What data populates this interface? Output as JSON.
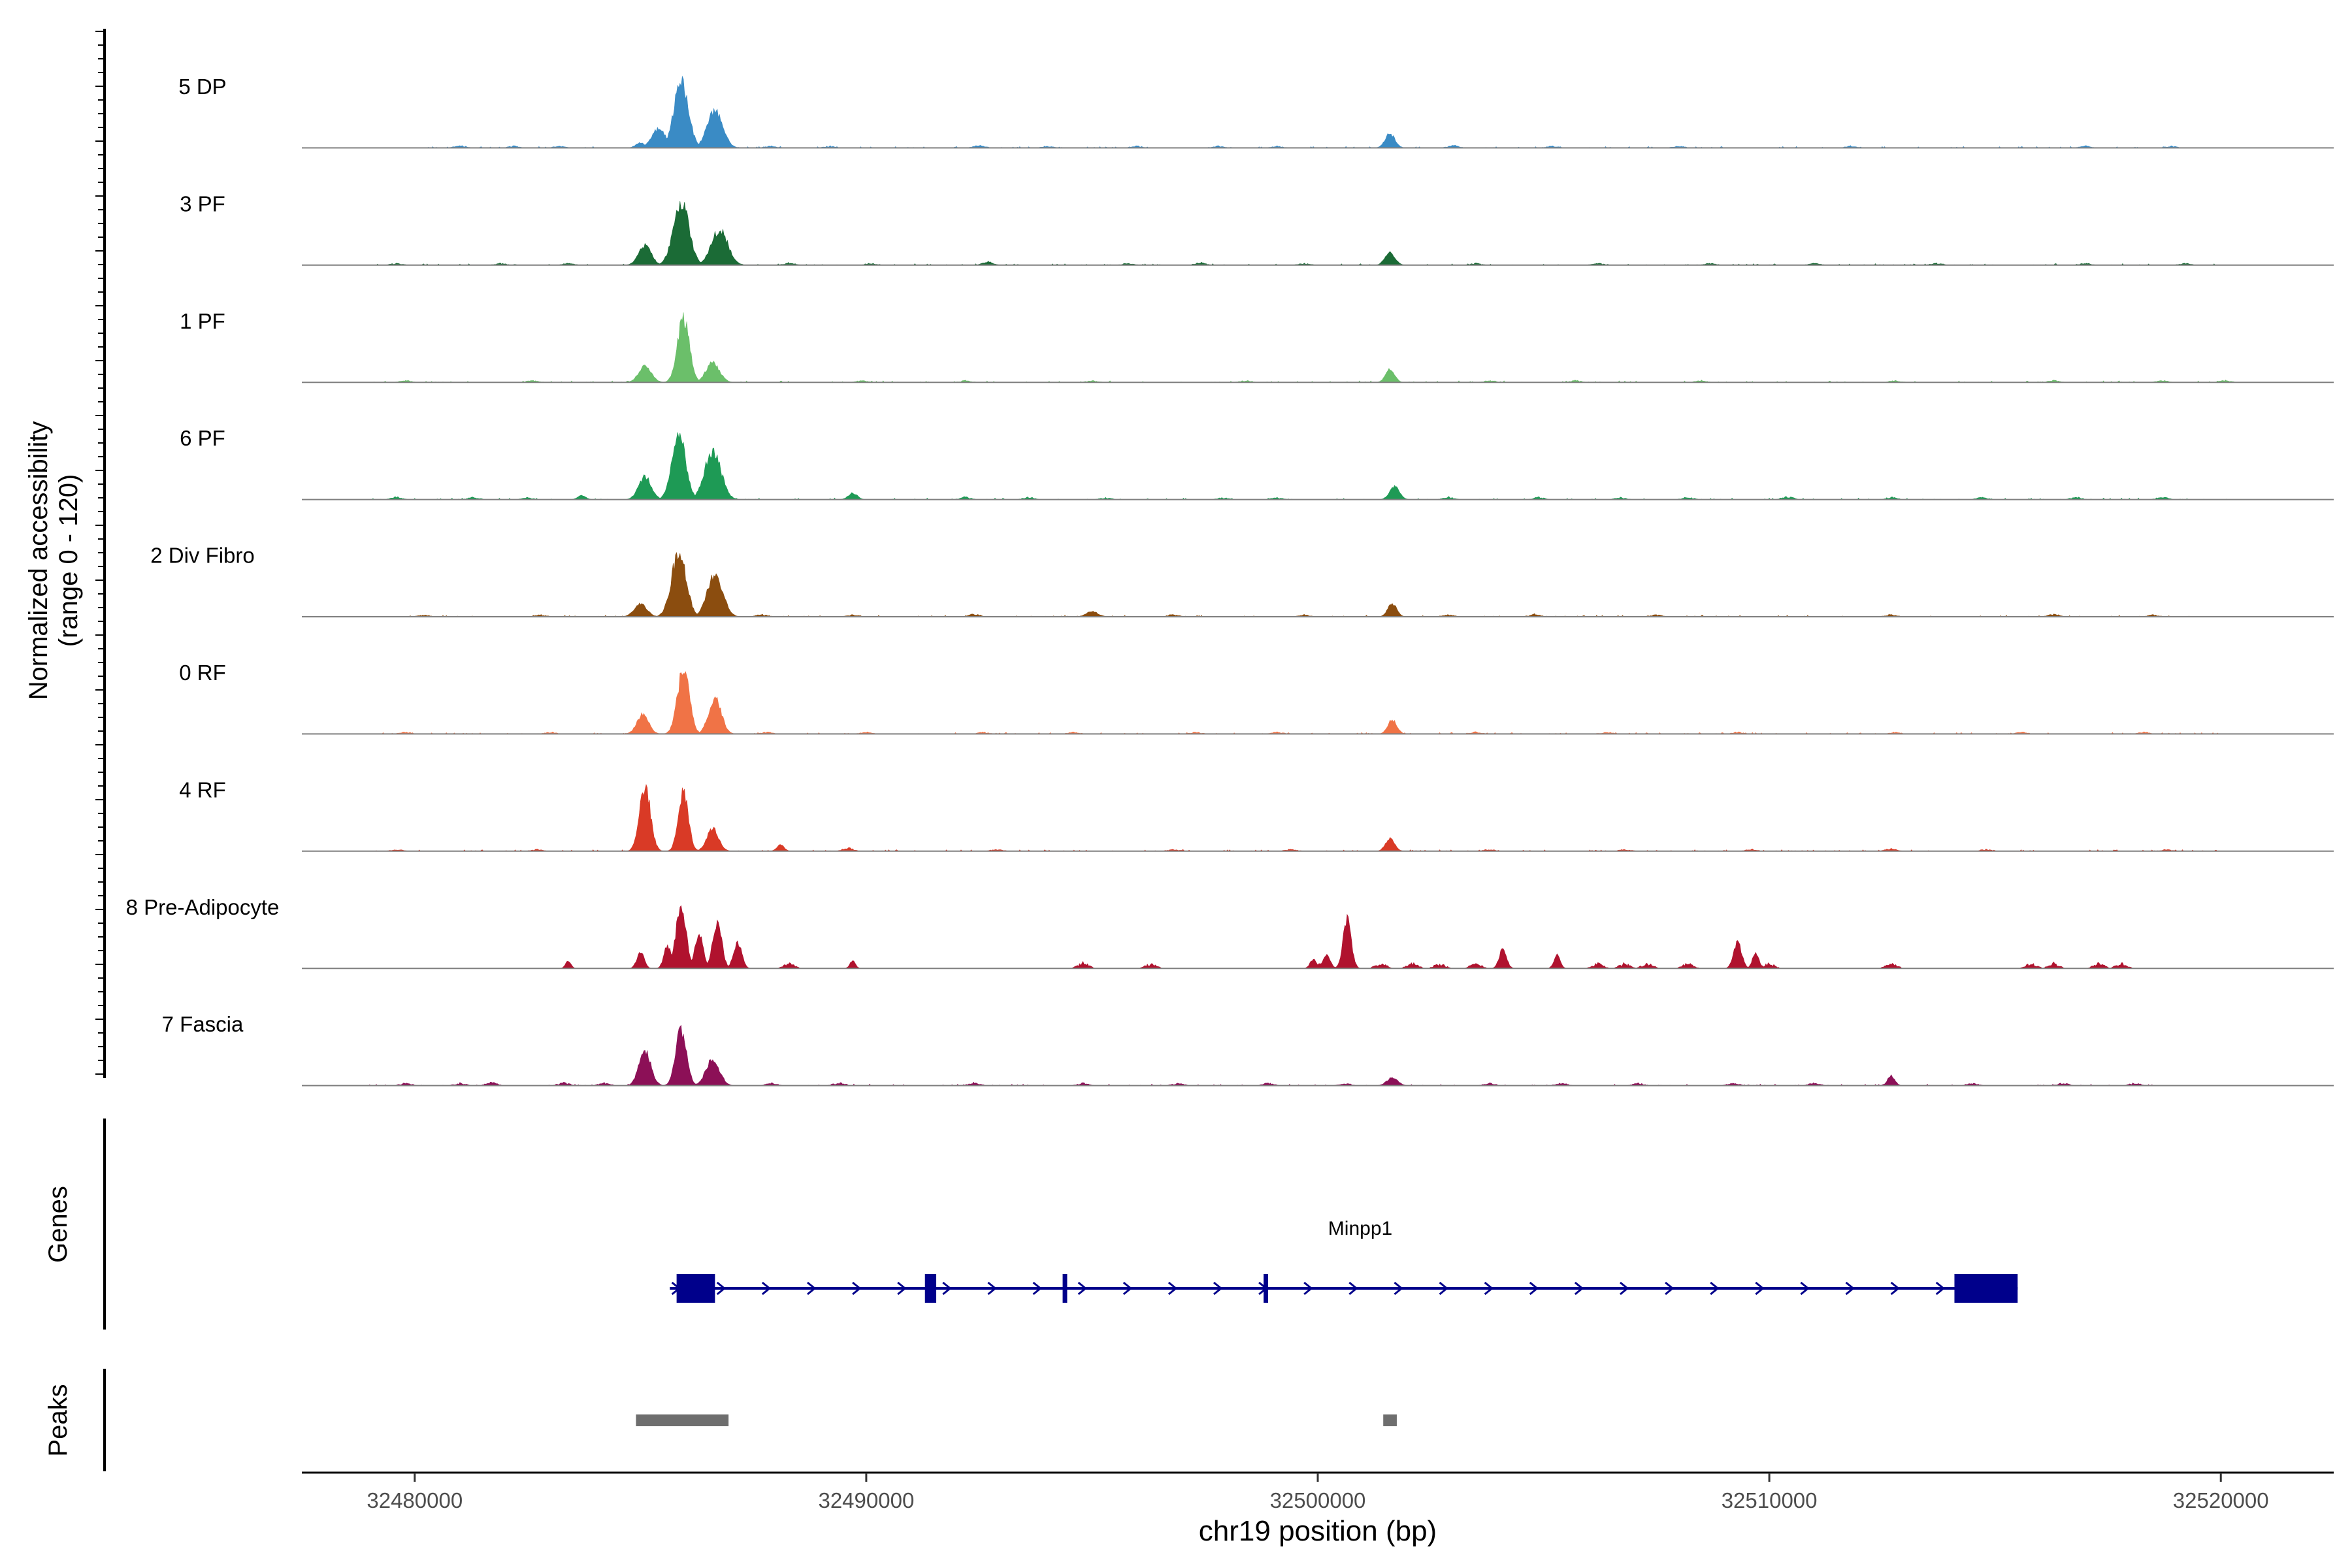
{
  "chart_data": {
    "type": "area",
    "title": "",
    "y_axis_label_line1": "Normalized accessibility",
    "y_axis_label_line2": "(range 0 - 120)",
    "y_range": [
      0,
      120
    ],
    "x_axis_label": "chr19 position (bp)",
    "x_range": [
      32477500,
      32522500
    ],
    "x_ticks": [
      32480000,
      32490000,
      32500000,
      32510000,
      32520000
    ],
    "x_tick_labels": [
      "32480000",
      "32490000",
      "32500000",
      "32510000",
      "32520000"
    ],
    "tracks": [
      {
        "name": "5 DP",
        "color": "#3A8BC5",
        "peaks": [
          [
            32485000,
            8,
            100
          ],
          [
            32485400,
            30,
            150
          ],
          [
            32485900,
            100,
            160
          ],
          [
            32486650,
            58,
            170
          ],
          [
            32501600,
            22,
            110
          ]
        ],
        "noise": [
          [
            32481000,
            4
          ],
          [
            32482200,
            3
          ],
          [
            32483200,
            3
          ],
          [
            32487900,
            3
          ],
          [
            32489200,
            3
          ],
          [
            32492500,
            4
          ],
          [
            32494000,
            3
          ],
          [
            32496000,
            3
          ],
          [
            32497800,
            3
          ],
          [
            32499100,
            3
          ],
          [
            32503000,
            4
          ],
          [
            32505200,
            3
          ],
          [
            32508000,
            3
          ],
          [
            32511800,
            3
          ],
          [
            32517000,
            3
          ],
          [
            32518900,
            3
          ]
        ],
        "noise_range": [
          32480000,
          32519500
        ]
      },
      {
        "name": "3 PF",
        "color": "#1B6B36",
        "peaks": [
          [
            32485100,
            30,
            140
          ],
          [
            32485900,
            100,
            170
          ],
          [
            32486750,
            55,
            180
          ],
          [
            32501600,
            20,
            110
          ]
        ],
        "noise": [
          [
            32479600,
            3
          ],
          [
            32481900,
            3
          ],
          [
            32483400,
            3
          ],
          [
            32488300,
            4
          ],
          [
            32490100,
            3
          ],
          [
            32492700,
            5
          ],
          [
            32495800,
            3
          ],
          [
            32497400,
            4
          ],
          [
            32499700,
            3
          ],
          [
            32503500,
            3
          ],
          [
            32506200,
            3
          ],
          [
            32508700,
            3
          ],
          [
            32511000,
            3
          ],
          [
            32513700,
            3
          ],
          [
            32517000,
            3
          ],
          [
            32519200,
            3
          ]
        ],
        "noise_range": [
          32479000,
          32520000
        ]
      },
      {
        "name": "1 PF",
        "color": "#6BBF6A",
        "peaks": [
          [
            32485100,
            25,
            140
          ],
          [
            32485950,
            100,
            130
          ],
          [
            32486600,
            30,
            150
          ],
          [
            32501600,
            20,
            100
          ]
        ],
        "noise": [
          [
            32479800,
            3
          ],
          [
            32482600,
            3
          ],
          [
            32489900,
            3
          ],
          [
            32492200,
            3
          ],
          [
            32495000,
            3
          ],
          [
            32498400,
            3
          ],
          [
            32503800,
            3
          ],
          [
            32505700,
            3
          ],
          [
            32508500,
            3
          ],
          [
            32512800,
            3
          ],
          [
            32516300,
            3
          ],
          [
            32518700,
            3
          ],
          [
            32520100,
            3
          ]
        ],
        "noise_range": [
          32479000,
          32520300
        ]
      },
      {
        "name": "6 PF",
        "color": "#1E9A55",
        "peaks": [
          [
            32485100,
            35,
            140
          ],
          [
            32485850,
            100,
            150
          ],
          [
            32486600,
            75,
            180
          ],
          [
            32501700,
            20,
            110
          ],
          [
            32489700,
            10,
            100
          ],
          [
            32483700,
            6,
            90
          ]
        ],
        "noise": [
          [
            32479600,
            4
          ],
          [
            32481300,
            4
          ],
          [
            32482500,
            3
          ],
          [
            32492200,
            4
          ],
          [
            32493600,
            4
          ],
          [
            32495300,
            3
          ],
          [
            32497900,
            3
          ],
          [
            32499100,
            3
          ],
          [
            32502900,
            4
          ],
          [
            32504900,
            4
          ],
          [
            32506700,
            3
          ],
          [
            32508200,
            4
          ],
          [
            32510400,
            5
          ],
          [
            32512700,
            4
          ],
          [
            32514700,
            4
          ],
          [
            32516800,
            4
          ],
          [
            32518700,
            4
          ]
        ],
        "noise_range": [
          32479000,
          32520200
        ]
      },
      {
        "name": "2 Div Fibro",
        "color": "#8B4D0F",
        "peaks": [
          [
            32485000,
            20,
            140
          ],
          [
            32485850,
            100,
            160
          ],
          [
            32486650,
            65,
            170
          ],
          [
            32501650,
            20,
            100
          ],
          [
            32495000,
            8,
            130
          ]
        ],
        "noise": [
          [
            32480200,
            3
          ],
          [
            32482800,
            3
          ],
          [
            32487700,
            4
          ],
          [
            32489700,
            3
          ],
          [
            32492400,
            5
          ],
          [
            32496800,
            4
          ],
          [
            32499700,
            3
          ],
          [
            32502900,
            3
          ],
          [
            32504800,
            4
          ],
          [
            32507500,
            3
          ],
          [
            32512700,
            4
          ],
          [
            32516300,
            4
          ],
          [
            32518500,
            3
          ]
        ],
        "noise_range": [
          32479600,
          32519800
        ]
      },
      {
        "name": "0 RF",
        "color": "#F07346",
        "peaks": [
          [
            32485050,
            30,
            130
          ],
          [
            32485950,
            100,
            130
          ],
          [
            32486650,
            55,
            140
          ],
          [
            32501650,
            22,
            100
          ]
        ],
        "noise": [
          [
            32479800,
            3
          ],
          [
            32483000,
            3
          ],
          [
            32487800,
            3
          ],
          [
            32490000,
            3
          ],
          [
            32492600,
            3
          ],
          [
            32494600,
            3
          ],
          [
            32497300,
            3
          ],
          [
            32499100,
            3
          ],
          [
            32503500,
            3
          ],
          [
            32506400,
            3
          ],
          [
            32509300,
            3
          ],
          [
            32512800,
            3
          ],
          [
            32515600,
            3
          ],
          [
            32518300,
            3
          ]
        ],
        "noise_range": [
          32479200,
          32520000
        ]
      },
      {
        "name": "4 RF",
        "color": "#D93A26",
        "peaks": [
          [
            32485100,
            100,
            120
          ],
          [
            32485950,
            92,
            110
          ],
          [
            32486600,
            35,
            130
          ],
          [
            32488100,
            10,
            80
          ],
          [
            32501600,
            20,
            100
          ]
        ],
        "noise": [
          [
            32479600,
            3
          ],
          [
            32482700,
            3
          ],
          [
            32489600,
            5
          ],
          [
            32492900,
            3
          ],
          [
            32496800,
            3
          ],
          [
            32499400,
            3
          ],
          [
            32503800,
            3
          ],
          [
            32506800,
            3
          ],
          [
            32509600,
            3
          ],
          [
            32512700,
            4
          ],
          [
            32514800,
            3
          ],
          [
            32518800,
            3
          ]
        ],
        "noise_range": [
          32479000,
          32520300
        ]
      },
      {
        "name": "8 Pre-Adipocyte",
        "color": "#B0122E",
        "peaks": [
          [
            32485000,
            25,
            80
          ],
          [
            32485600,
            35,
            80
          ],
          [
            32485900,
            100,
            110
          ],
          [
            32486300,
            55,
            90
          ],
          [
            32486700,
            70,
            100
          ],
          [
            32487150,
            40,
            90
          ],
          [
            32483400,
            12,
            60
          ],
          [
            32489700,
            12,
            60
          ],
          [
            32500650,
            75,
            90
          ],
          [
            32500200,
            20,
            80
          ],
          [
            32499900,
            14,
            70
          ],
          [
            32509300,
            40,
            90
          ],
          [
            32509700,
            25,
            70
          ],
          [
            32505300,
            20,
            70
          ],
          [
            32504100,
            30,
            80
          ]
        ],
        "noise": [
          [
            32488300,
            8
          ],
          [
            32494800,
            10
          ],
          [
            32496300,
            8
          ],
          [
            32500000,
            8
          ],
          [
            32501400,
            8
          ],
          [
            32502100,
            8
          ],
          [
            32502700,
            8
          ],
          [
            32503500,
            8
          ],
          [
            32506200,
            8
          ],
          [
            32506800,
            8
          ],
          [
            32507300,
            8
          ],
          [
            32508200,
            8
          ],
          [
            32510000,
            8
          ],
          [
            32512700,
            9
          ],
          [
            32515800,
            8
          ],
          [
            32516300,
            8
          ],
          [
            32517300,
            8
          ],
          [
            32517800,
            8
          ]
        ],
        "noise_range": null
      },
      {
        "name": "7 Fascia",
        "color": "#8C1057",
        "peaks": [
          [
            32485100,
            55,
            130
          ],
          [
            32485900,
            85,
            120
          ],
          [
            32486600,
            40,
            150
          ],
          [
            32512700,
            15,
            80
          ],
          [
            32501650,
            12,
            120
          ]
        ],
        "noise": [
          [
            32479800,
            4
          ],
          [
            32481000,
            4
          ],
          [
            32481700,
            6
          ],
          [
            32483300,
            5
          ],
          [
            32484200,
            4
          ],
          [
            32487900,
            4
          ],
          [
            32489400,
            5
          ],
          [
            32492400,
            5
          ],
          [
            32494800,
            4
          ],
          [
            32496900,
            4
          ],
          [
            32498900,
            4
          ],
          [
            32500600,
            4
          ],
          [
            32503800,
            4
          ],
          [
            32505400,
            4
          ],
          [
            32507100,
            4
          ],
          [
            32509200,
            4
          ],
          [
            32511000,
            4
          ],
          [
            32514500,
            4
          ],
          [
            32516500,
            4
          ],
          [
            32518100,
            4
          ]
        ],
        "noise_range": [
          32479000,
          32518500
        ]
      }
    ],
    "genes": {
      "panel_label": "Genes",
      "name": "Minpp1",
      "strand": "+",
      "start": 32485800,
      "end": 32515500,
      "exons": [
        [
          32485800,
          32486650
        ],
        [
          32491300,
          32491550
        ],
        [
          32494350,
          32494450
        ],
        [
          32498800,
          32498900
        ],
        [
          32514100,
          32515500
        ]
      ]
    },
    "peaks_panel": {
      "panel_label": "Peaks",
      "regions": [
        [
          32484900,
          32486950
        ],
        [
          32501450,
          32501750
        ]
      ]
    }
  }
}
